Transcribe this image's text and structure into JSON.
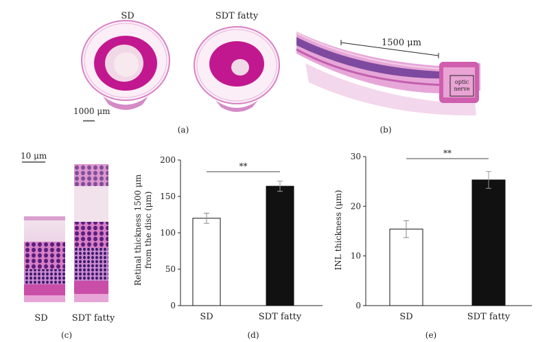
{
  "panel_a": {
    "label_left": "SD",
    "label_right": "SDT fatty",
    "scale_bar": "1000 μm",
    "caption": "(a)"
  },
  "panel_b": {
    "scale_bar": "1500 μm",
    "box_label_line1": "optic",
    "box_label_line2": "nerve",
    "caption": "(b)"
  },
  "panel_c": {
    "scale_bar": "10 μm",
    "label_left": "SD",
    "label_right": "SDT fatty",
    "caption": "(c)"
  },
  "colors": {
    "tissue_pink": "#d96fb9",
    "tissue_magenta": "#c2188f",
    "nuclei_purple": "#6a2a8a",
    "bar_black": "#111111",
    "bar_white": "#ffffff"
  },
  "chart_data": [
    {
      "type": "bar",
      "panel": "(d)",
      "categories": [
        "SD",
        "SDT fatty"
      ],
      "values": [
        120,
        164
      ],
      "errors": [
        7,
        7
      ],
      "fills": [
        "#ffffff",
        "#111111"
      ],
      "ylabel_line1": "Retinal thickness 1500 μm",
      "ylabel_line2": "from the disc (μm)",
      "ylim": [
        0,
        200
      ],
      "yticks": [
        0,
        50,
        100,
        150,
        200
      ],
      "significance": "**"
    },
    {
      "type": "bar",
      "panel": "(e)",
      "categories": [
        "SD",
        "SDT fatty"
      ],
      "values": [
        15.4,
        25.3
      ],
      "errors": [
        1.7,
        1.7
      ],
      "fills": [
        "#ffffff",
        "#111111"
      ],
      "ylabel_line1": "INL thickness (μm)",
      "ylabel_line2": "",
      "ylim": [
        0,
        30
      ],
      "yticks": [
        0,
        10,
        20,
        30
      ],
      "significance": "**"
    }
  ]
}
